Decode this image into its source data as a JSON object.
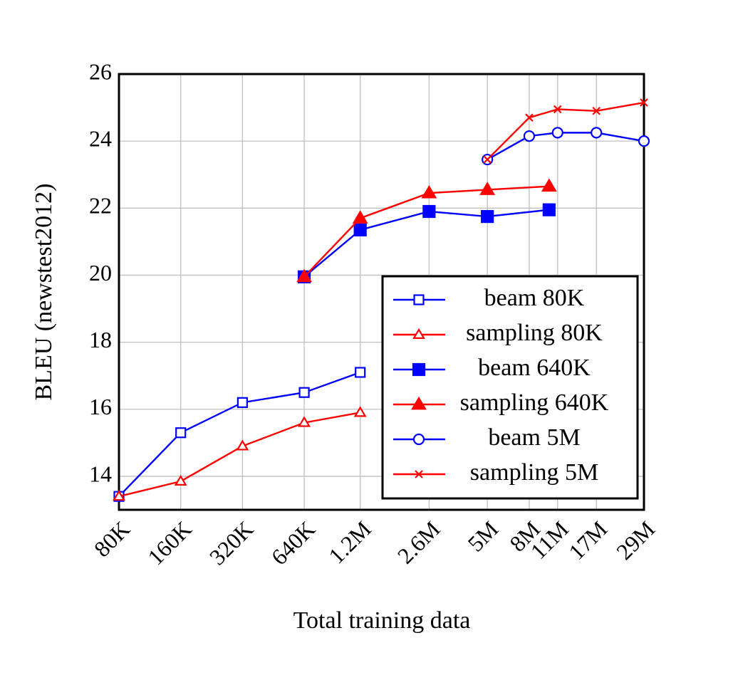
{
  "chart_data": {
    "type": "line",
    "xlabel": "Total training data",
    "ylabel": "BLEU (newstest2012)",
    "xscale": "log",
    "xlim": [
      80000,
      29000000
    ],
    "xticks": [
      {
        "value": 80000,
        "label": "80K"
      },
      {
        "value": 160000,
        "label": "160K"
      },
      {
        "value": 320000,
        "label": "320K"
      },
      {
        "value": 640000,
        "label": "640K"
      },
      {
        "value": 1200000,
        "label": "1.2M"
      },
      {
        "value": 2600000,
        "label": "2.6M"
      },
      {
        "value": 5000000,
        "label": "5M"
      },
      {
        "value": 8000000,
        "label": "8M"
      },
      {
        "value": 11000000,
        "label": "11M"
      },
      {
        "value": 17000000,
        "label": "17M"
      },
      {
        "value": 29000000,
        "label": "29M"
      }
    ],
    "ylim": [
      13,
      26
    ],
    "yticks": [
      14,
      16,
      18,
      20,
      22,
      24,
      26
    ],
    "grid": true,
    "legend": "lower right",
    "series": [
      {
        "name": "beam 80K",
        "color": "#0000ff",
        "marker": "square-open",
        "x": [
          80000,
          160000,
          320000,
          640000,
          1200000
        ],
        "values": [
          13.4,
          15.3,
          16.2,
          16.5,
          17.1
        ]
      },
      {
        "name": "sampling 80K",
        "color": "#ff0000",
        "marker": "triangle-open",
        "x": [
          80000,
          160000,
          320000,
          640000,
          1200000
        ],
        "values": [
          13.4,
          13.85,
          14.9,
          15.6,
          15.9
        ]
      },
      {
        "name": "beam 640K",
        "color": "#0000ff",
        "marker": "square",
        "x": [
          640000,
          1200000,
          2600000,
          5000000,
          10000000
        ],
        "values": [
          19.95,
          21.35,
          21.9,
          21.75,
          21.95
        ]
      },
      {
        "name": "sampling 640K",
        "color": "#ff0000",
        "marker": "triangle",
        "x": [
          640000,
          1200000,
          2600000,
          5000000,
          10000000
        ],
        "values": [
          19.95,
          21.7,
          22.45,
          22.55,
          22.65
        ]
      },
      {
        "name": "beam 5M",
        "color": "#0000ff",
        "marker": "circle-open",
        "x": [
          5000000,
          8000000,
          11000000,
          17000000,
          29000000
        ],
        "values": [
          23.45,
          24.15,
          24.25,
          24.25,
          24.0
        ]
      },
      {
        "name": "sampling 5M",
        "color": "#ff0000",
        "marker": "cross",
        "x": [
          5000000,
          8000000,
          11000000,
          17000000,
          29000000
        ],
        "values": [
          23.45,
          24.7,
          24.95,
          24.9,
          25.15
        ]
      }
    ]
  }
}
